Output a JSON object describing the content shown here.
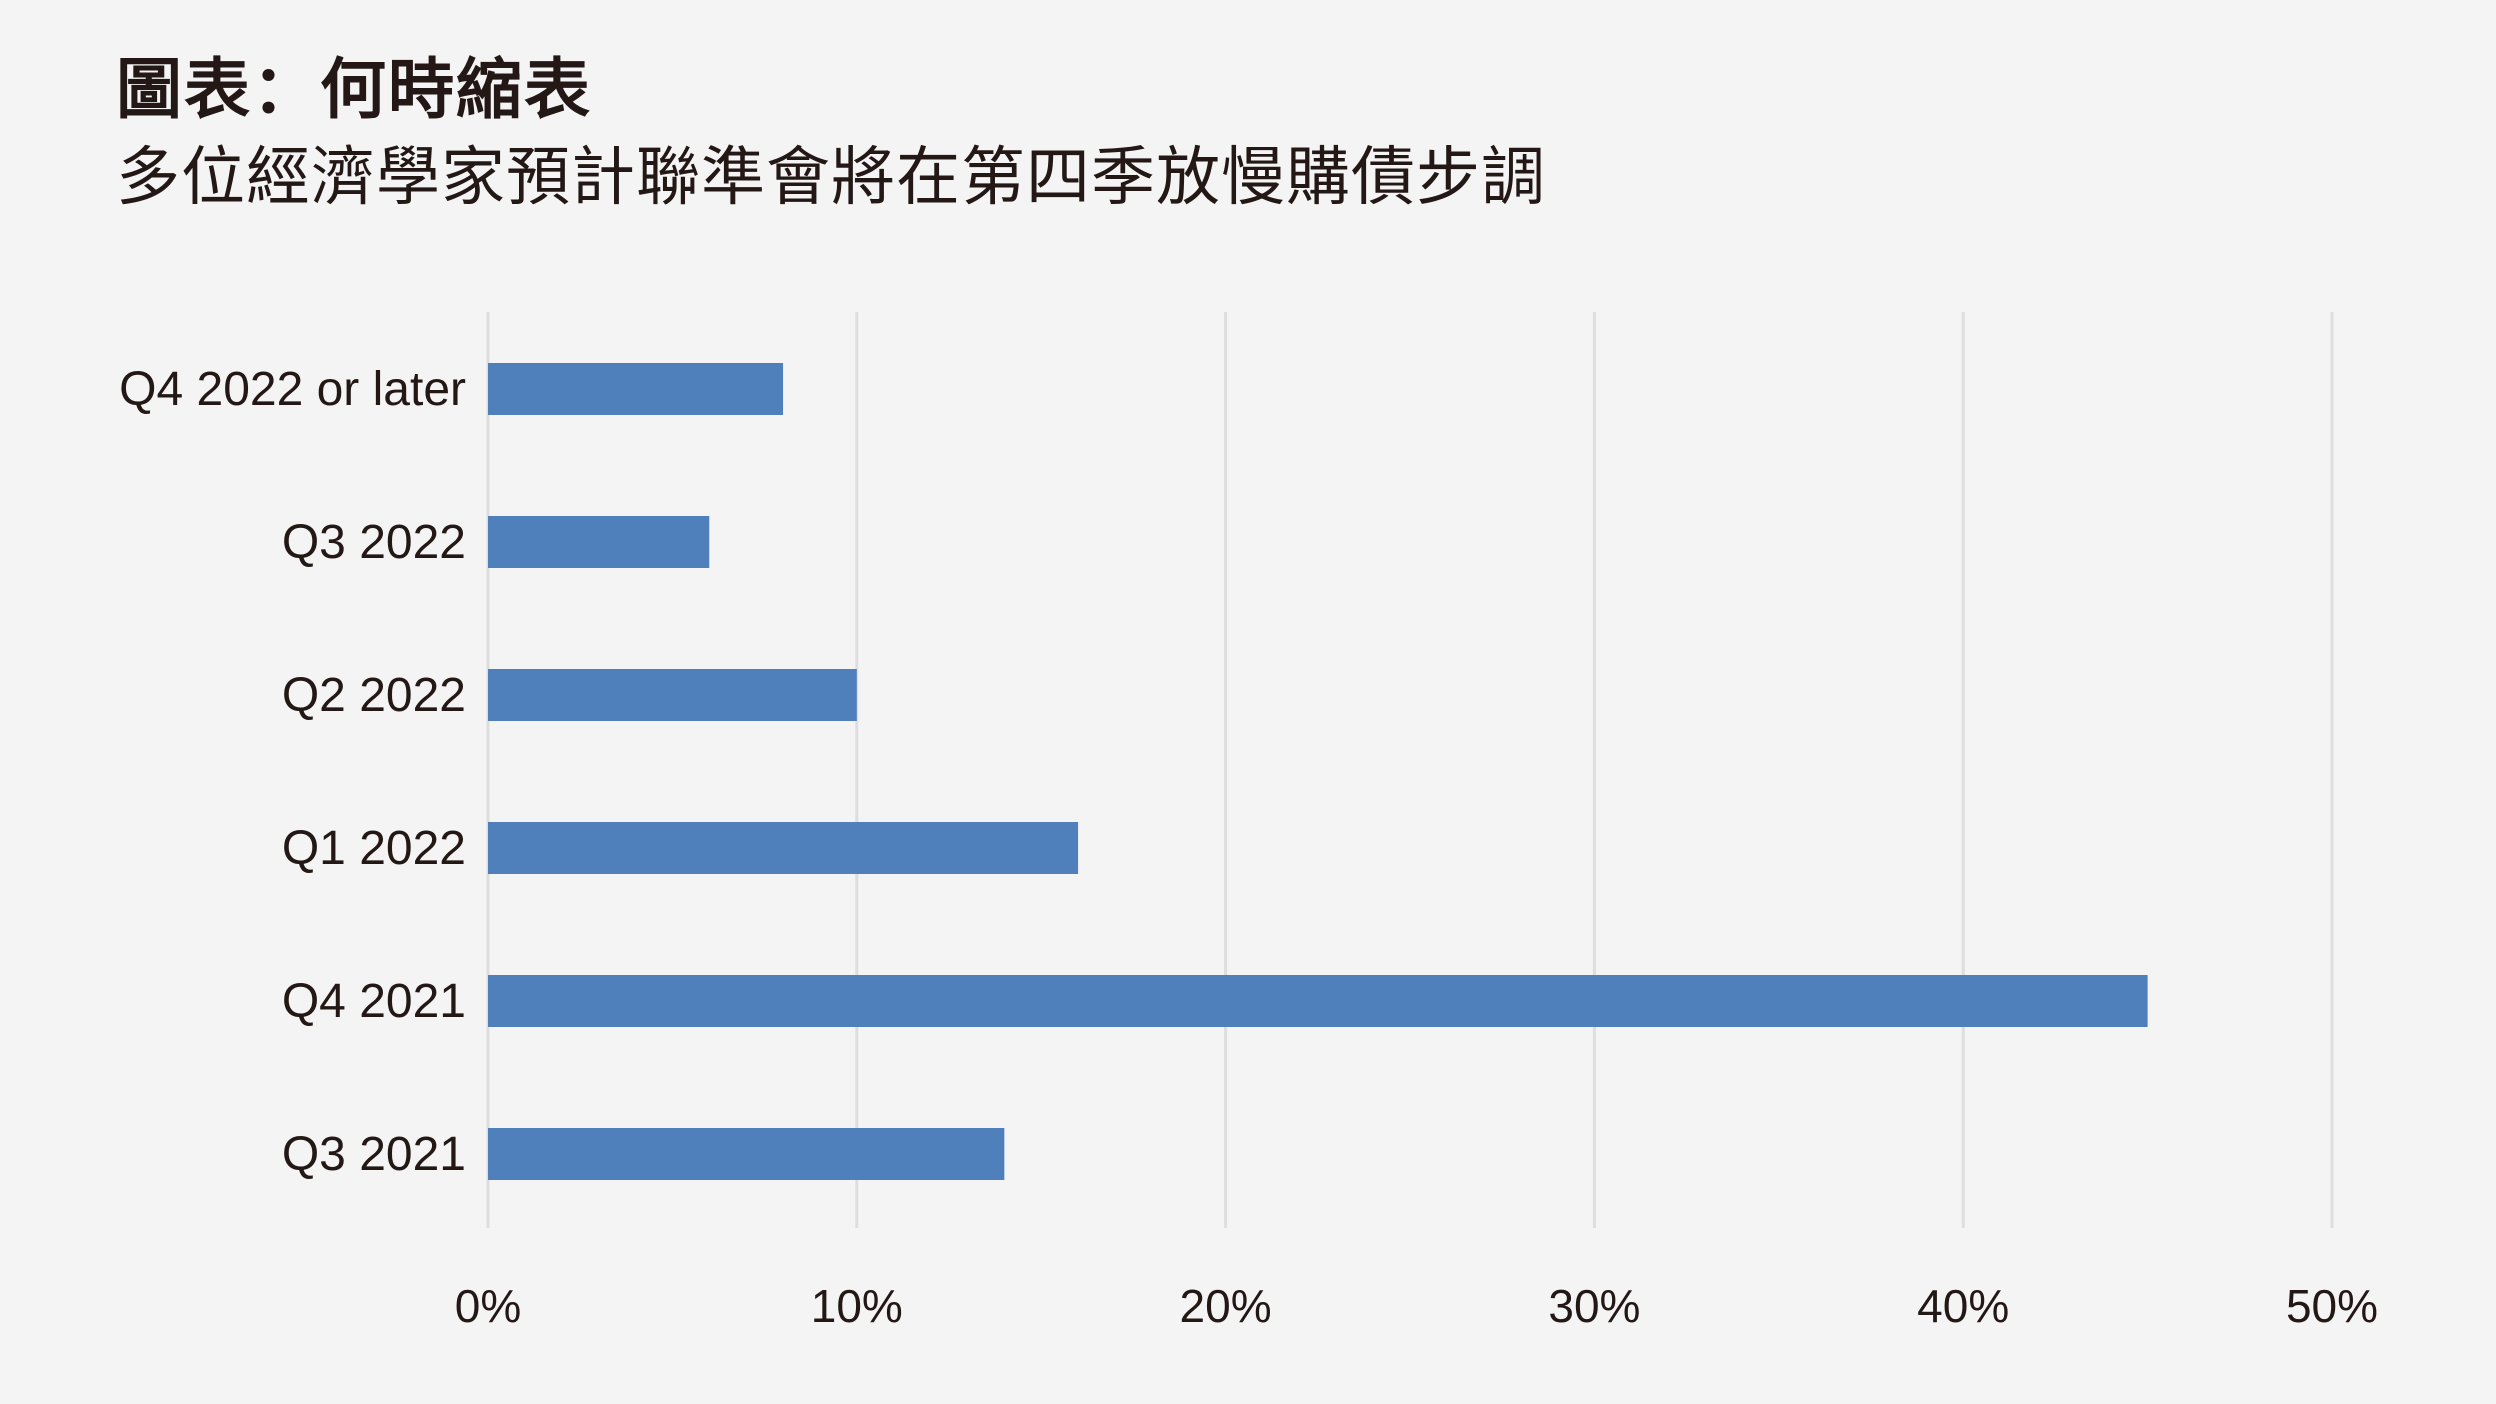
{
  "title": "圖表：何時縮表",
  "subtitle": "多位經濟學家預計聯準會將在第四季放慢購債步調",
  "colors": {
    "bar": "#4f80bb",
    "grid": "#dedede",
    "background": "#f4f4f4",
    "text": "#231815"
  },
  "chart_data": {
    "type": "bar",
    "orientation": "horizontal",
    "categories": [
      "Q4 2022 or later",
      "Q3 2022",
      "Q2 2022",
      "Q1 2022",
      "Q4 2021",
      "Q3 2021"
    ],
    "values": [
      8,
      6,
      10,
      16,
      45,
      14
    ],
    "value_unit": "%",
    "xlim": [
      0,
      50
    ],
    "xticks": [
      0,
      10,
      20,
      30,
      40,
      50
    ],
    "xtick_labels": [
      "0%",
      "10%",
      "20%",
      "30%",
      "40%",
      "50%"
    ],
    "grid": "vertical",
    "legend": "none"
  }
}
